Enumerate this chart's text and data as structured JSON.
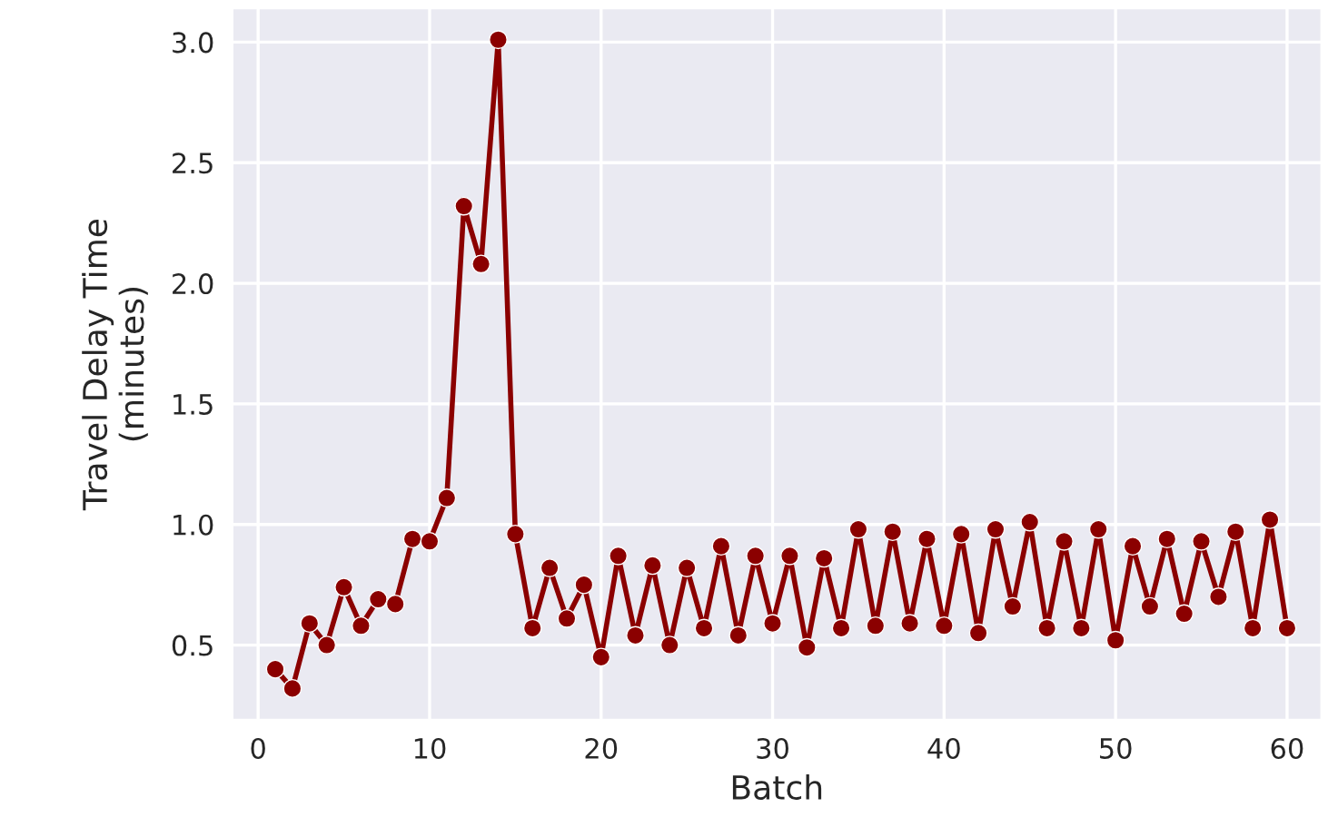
{
  "chart_data": {
    "type": "line",
    "xlabel": "Batch",
    "ylabel": "Travel Delay Time\n(minutes)",
    "x": [
      1,
      2,
      3,
      4,
      5,
      6,
      7,
      8,
      9,
      10,
      11,
      12,
      13,
      14,
      15,
      16,
      17,
      18,
      19,
      20,
      21,
      22,
      23,
      24,
      25,
      26,
      27,
      28,
      29,
      30,
      31,
      32,
      33,
      34,
      35,
      36,
      37,
      38,
      39,
      40,
      41,
      42,
      43,
      44,
      45,
      46,
      47,
      48,
      49,
      50,
      51,
      52,
      53,
      54,
      55,
      56,
      57,
      58,
      59,
      60
    ],
    "series": [
      {
        "color": "#8b0000",
        "values": [
          0.4,
          0.32,
          0.59,
          0.5,
          0.74,
          0.58,
          0.69,
          0.67,
          0.94,
          0.93,
          1.11,
          2.32,
          2.08,
          3.01,
          0.96,
          0.57,
          0.82,
          0.61,
          0.75,
          0.45,
          0.87,
          0.54,
          0.83,
          0.5,
          0.82,
          0.57,
          0.91,
          0.54,
          0.87,
          0.59,
          0.87,
          0.49,
          0.86,
          0.57,
          0.98,
          0.58,
          0.97,
          0.59,
          0.94,
          0.58,
          0.96,
          0.55,
          0.98,
          0.66,
          1.01,
          0.57,
          0.93,
          0.57,
          0.98,
          0.52,
          0.91,
          0.66,
          0.94,
          0.63,
          0.93,
          0.7,
          0.97,
          0.57,
          1.02,
          0.57
        ]
      }
    ],
    "xlim": [
      -1.5,
      62
    ],
    "ylim": [
      0.19,
      3.14
    ],
    "xticks": [
      0,
      10,
      20,
      30,
      40,
      50,
      60
    ],
    "yticks": [
      {
        "value": 0.5,
        "label": "0.5"
      },
      {
        "value": 1.0,
        "label": "1.0"
      },
      {
        "value": 1.5,
        "label": "1.5"
      },
      {
        "value": 2.0,
        "label": "2.0"
      },
      {
        "value": 2.5,
        "label": "2.5"
      },
      {
        "value": 3.0,
        "label": "3.0"
      }
    ],
    "grid": true,
    "marker": "circle",
    "line_style": "solid"
  }
}
